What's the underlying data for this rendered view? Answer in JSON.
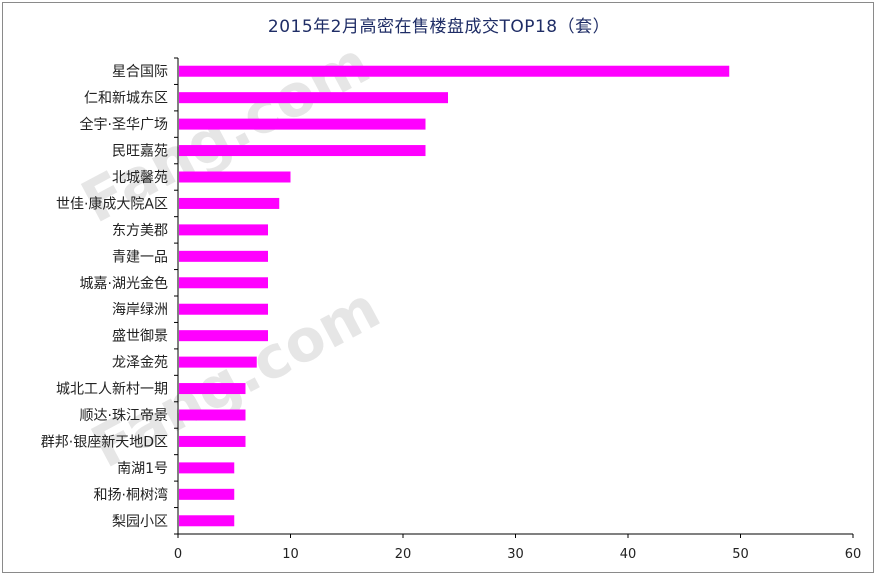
{
  "chart_data": {
    "type": "bar",
    "orientation": "horizontal",
    "title": "2015年2月高密在售楼盘成交TOP18（套）",
    "categories": [
      "星合国际",
      "仁和新城东区",
      "全宇·圣华广场",
      "民旺嘉苑",
      "北城馨苑",
      "世佳·康成大院A区",
      "东方美郡",
      "青建一品",
      "城嘉·湖光金色",
      "海岸绿洲",
      "盛世御景",
      "龙泽金苑",
      "城北工人新村一期",
      "顺达·珠江帝景",
      "群邦·银座新天地D区",
      "南湖1号",
      "和扬·桐树湾",
      "梨园小区"
    ],
    "values": [
      49,
      24,
      22,
      22,
      10,
      9,
      8,
      8,
      8,
      8,
      8,
      7,
      6,
      6,
      6,
      5,
      5,
      5
    ],
    "xlim": [
      0,
      60
    ],
    "xticks": [
      0,
      10,
      20,
      30,
      40,
      50,
      60
    ],
    "grid": false,
    "bar_color": "#ff00ff",
    "watermark": "Fang.com"
  }
}
